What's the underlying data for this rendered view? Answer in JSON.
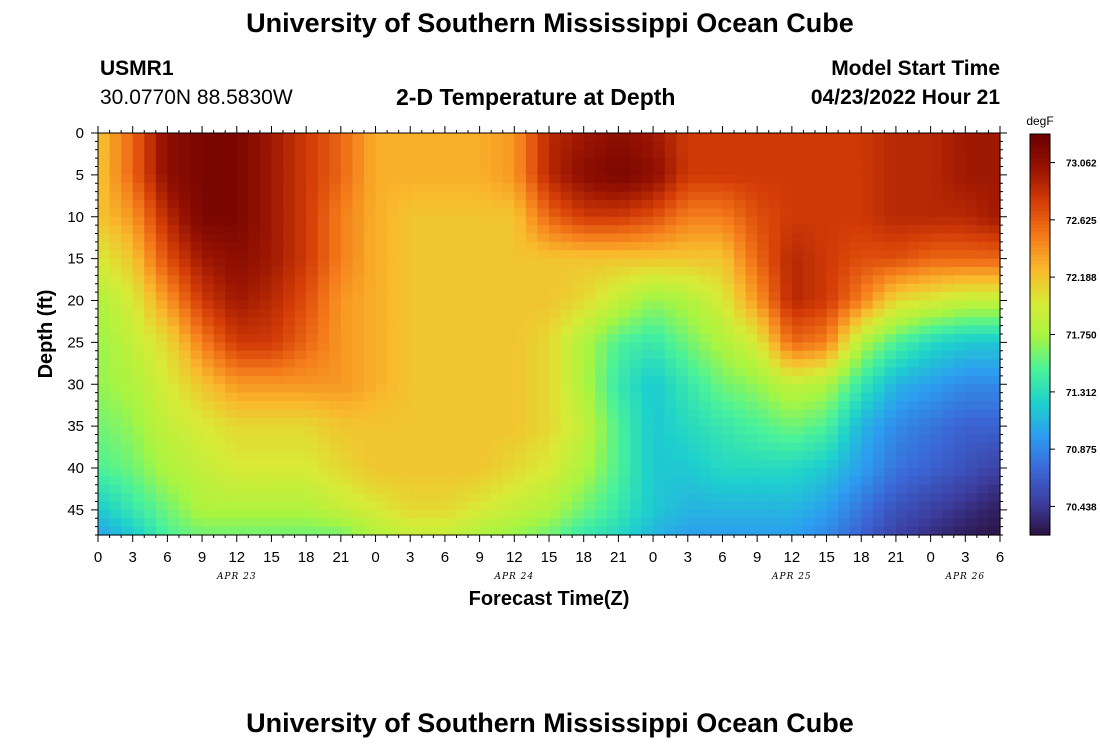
{
  "header": {
    "title": "University of Southern Mississippi Ocean Cube",
    "station": "USMR1",
    "coords": "30.0770N  88.5830W",
    "plot_title": "2-D Temperature at Depth",
    "model_label": "Model Start Time",
    "model_time": "04/23/2022 Hour 21"
  },
  "footer": {
    "title": "University of Southern Mississippi Ocean Cube"
  },
  "colors": {
    "background": "#ffffff",
    "axis": "#000000"
  },
  "chart_data": {
    "type": "heatmap",
    "title": "2-D Temperature at Depth",
    "xlabel": "Forecast Time(Z)",
    "ylabel": "Depth (ft)",
    "x_unit": "forecast hour, starting 04/23/2022 00Z",
    "xlim": [
      0,
      78
    ],
    "ylim": [
      0,
      48
    ],
    "y_inverted": true,
    "x_tick_labels": [
      "0",
      "3",
      "6",
      "9",
      "12",
      "15",
      "18",
      "21",
      "0",
      "3",
      "6",
      "9",
      "12",
      "15",
      "18",
      "21",
      "0",
      "3",
      "6",
      "9",
      "12",
      "15",
      "18",
      "21",
      "0",
      "3",
      "6"
    ],
    "y_ticks": [
      0,
      5,
      10,
      15,
      20,
      25,
      30,
      35,
      40,
      45
    ],
    "date_labels": [
      {
        "label": "APR 23",
        "hour": 12
      },
      {
        "label": "APR 24",
        "hour": 36
      },
      {
        "label": "APR 25",
        "hour": 60
      },
      {
        "label": "APR 26",
        "hour": 75
      }
    ],
    "colorbar": {
      "unit": "degF",
      "min": 70.22,
      "max": 73.28,
      "ticks": [
        "73.062",
        "72.625",
        "72.188",
        "71.750",
        "71.312",
        "70.875",
        "70.438"
      ],
      "stops": [
        "#2a0f3b",
        "#3c3d9e",
        "#3b67d6",
        "#2d9cf0",
        "#1ed1cc",
        "#4af29a",
        "#a6f542",
        "#d8ea36",
        "#f9b92c",
        "#f47a1a",
        "#d53e07",
        "#991402",
        "#6c0000"
      ]
    },
    "grid_depths": [
      0,
      5,
      10,
      15,
      20,
      25,
      30,
      35,
      40,
      45,
      48
    ],
    "grid_hours": [
      0,
      3,
      6,
      9,
      12,
      15,
      18,
      21,
      24,
      27,
      30,
      33,
      36,
      39,
      42,
      45,
      48,
      51,
      54,
      57,
      60,
      63,
      66,
      69,
      72,
      75,
      78
    ],
    "temperature_degF": [
      [
        72.2,
        72.6,
        73.1,
        73.2,
        73.2,
        73.0,
        72.8,
        72.6,
        72.3,
        72.3,
        72.3,
        72.3,
        72.4,
        72.9,
        73.0,
        73.1,
        73.0,
        72.8,
        72.8,
        72.8,
        72.8,
        72.8,
        72.8,
        72.9,
        72.9,
        73.0,
        73.0
      ],
      [
        72.2,
        72.6,
        73.1,
        73.2,
        73.2,
        73.0,
        72.8,
        72.6,
        72.3,
        72.3,
        72.3,
        72.3,
        72.4,
        72.9,
        73.1,
        73.2,
        73.1,
        72.8,
        72.8,
        72.8,
        72.8,
        72.8,
        72.8,
        72.9,
        72.9,
        73.0,
        73.0
      ],
      [
        72.2,
        72.4,
        72.9,
        73.2,
        73.2,
        73.0,
        72.8,
        72.5,
        72.3,
        72.2,
        72.2,
        72.2,
        72.2,
        72.6,
        72.8,
        72.8,
        72.7,
        72.5,
        72.5,
        72.7,
        72.8,
        72.8,
        72.8,
        72.9,
        72.9,
        72.9,
        73.0
      ],
      [
        72.0,
        72.2,
        72.7,
        73.0,
        73.1,
        73.0,
        72.8,
        72.5,
        72.3,
        72.2,
        72.2,
        72.2,
        72.2,
        72.2,
        72.2,
        72.2,
        72.2,
        72.2,
        72.2,
        72.6,
        72.9,
        72.8,
        72.7,
        72.7,
        72.6,
        72.6,
        72.6
      ],
      [
        71.8,
        72.0,
        72.4,
        72.8,
        73.0,
        72.9,
        72.7,
        72.4,
        72.3,
        72.2,
        72.2,
        72.2,
        72.2,
        72.2,
        72.1,
        71.9,
        71.7,
        71.8,
        72.0,
        72.4,
        72.9,
        72.8,
        72.5,
        72.1,
        72.0,
        71.9,
        71.9
      ],
      [
        71.7,
        71.9,
        72.1,
        72.5,
        72.8,
        72.8,
        72.6,
        72.4,
        72.3,
        72.2,
        72.2,
        72.2,
        72.2,
        72.1,
        71.8,
        71.5,
        71.4,
        71.6,
        71.8,
        72.0,
        72.6,
        72.5,
        71.8,
        71.5,
        71.3,
        71.2,
        71.2
      ],
      [
        71.7,
        71.8,
        72.0,
        72.2,
        72.4,
        72.4,
        72.4,
        72.4,
        72.3,
        72.2,
        72.2,
        72.2,
        72.2,
        72.1,
        71.8,
        71.4,
        71.2,
        71.4,
        71.6,
        71.7,
        71.9,
        71.8,
        71.4,
        71.1,
        71.0,
        70.9,
        70.9
      ],
      [
        71.6,
        71.7,
        71.9,
        72.0,
        72.1,
        72.1,
        72.1,
        72.2,
        72.2,
        72.2,
        72.2,
        72.2,
        72.2,
        72.1,
        71.9,
        71.5,
        71.2,
        71.3,
        71.4,
        71.5,
        71.6,
        71.5,
        71.1,
        70.9,
        70.8,
        70.7,
        70.7
      ],
      [
        71.5,
        71.6,
        71.8,
        71.9,
        72.0,
        72.0,
        72.0,
        72.1,
        72.2,
        72.2,
        72.2,
        72.2,
        72.1,
        72.0,
        71.8,
        71.5,
        71.2,
        71.2,
        71.3,
        71.3,
        71.3,
        71.2,
        71.0,
        70.8,
        70.7,
        70.6,
        70.5
      ],
      [
        71.2,
        71.4,
        71.6,
        71.8,
        71.8,
        71.8,
        71.8,
        71.9,
        72.0,
        72.1,
        72.1,
        72.0,
        71.9,
        71.8,
        71.6,
        71.4,
        71.2,
        71.1,
        71.1,
        71.1,
        71.1,
        71.0,
        70.8,
        70.6,
        70.5,
        70.4,
        70.3
      ],
      [
        71.0,
        71.2,
        71.5,
        71.6,
        71.6,
        71.6,
        71.6,
        71.6,
        71.8,
        71.9,
        71.9,
        71.8,
        71.7,
        71.6,
        71.4,
        71.3,
        71.1,
        71.0,
        71.0,
        71.0,
        71.0,
        70.9,
        70.7,
        70.5,
        70.4,
        70.3,
        70.25
      ]
    ]
  }
}
